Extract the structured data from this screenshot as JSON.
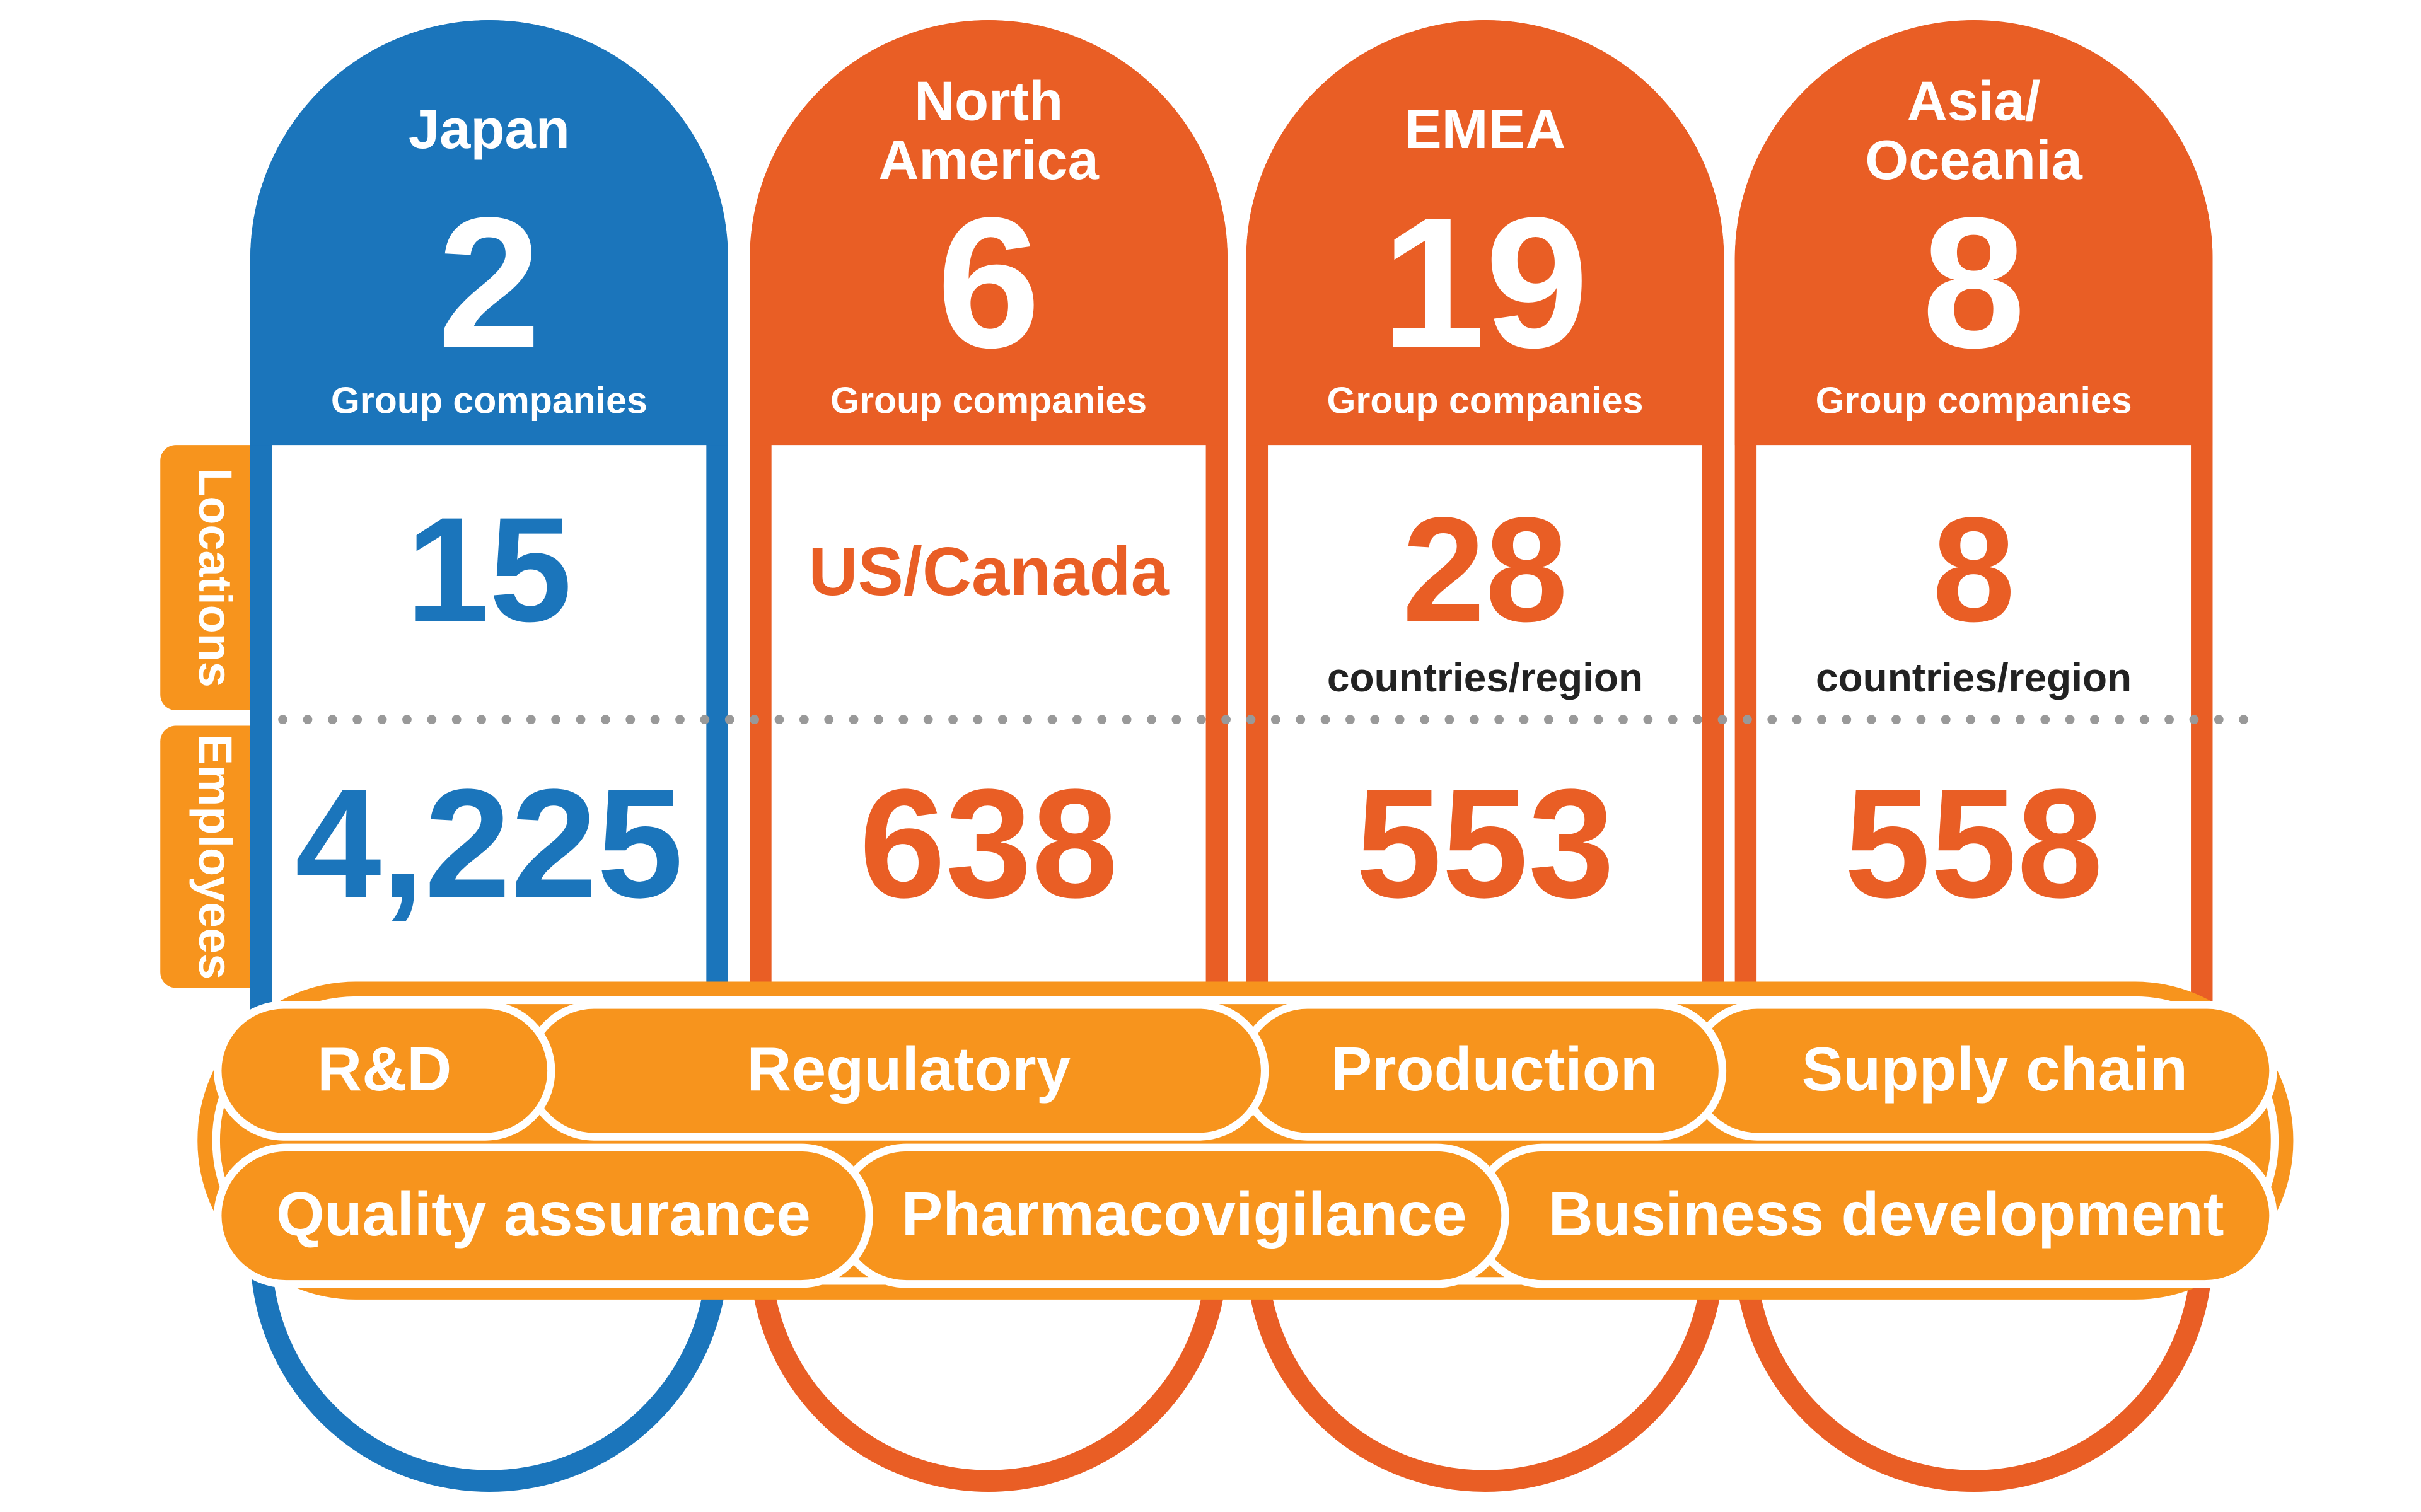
{
  "row_labels": [
    "Locations",
    "Employees"
  ],
  "regions": [
    {
      "name_lines": [
        "Japan"
      ],
      "group_companies": 2,
      "group_label": "Group companies",
      "locations": 15,
      "employees": "4,225",
      "color": "#1b75bb"
    },
    {
      "name_lines": [
        "North",
        "America"
      ],
      "group_companies": 6,
      "group_label": "Group companies",
      "locations": "US/Canada",
      "employees": 638,
      "color": "#e95e25"
    },
    {
      "name_lines": [
        "EMEA"
      ],
      "group_companies": 19,
      "group_label": "Group companies",
      "locations": 28,
      "locations_note": "countries/region",
      "employees": 553,
      "color": "#e95e25"
    },
    {
      "name_lines": [
        "Asia/",
        "Oceania"
      ],
      "group_companies": 8,
      "group_label": "Group companies",
      "locations": 8,
      "locations_note": "countries/region",
      "employees": 558,
      "color": "#e95e25"
    }
  ],
  "functions": [
    [
      "R&D",
      "Regulatory",
      "Production",
      "Supply chain"
    ],
    [
      "Quality assurance",
      "Pharmacovigilance",
      "Business development"
    ]
  ]
}
